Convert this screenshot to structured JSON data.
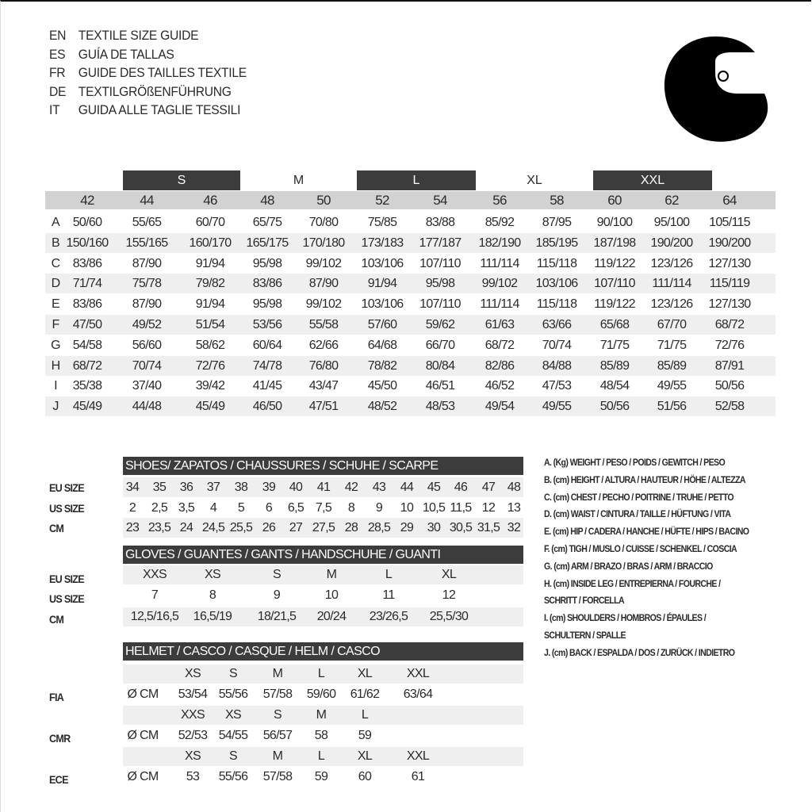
{
  "title_lines": [
    {
      "code": "EN",
      "text": "TEXTILE SIZE GUIDE"
    },
    {
      "code": "ES",
      "text": "GUÍA DE TALLAS"
    },
    {
      "code": "FR",
      "text": "GUIDE DES TAILLES TEXTILE"
    },
    {
      "code": "DE",
      "text": "TEXTILGRÖßENFÜHRUNG"
    },
    {
      "code": "IT",
      "text": "GUIDA ALLE TAGLIE TESSILI"
    }
  ],
  "helmet_icon": "helmet-icon",
  "textile": {
    "size_bands": [
      {
        "label": "S",
        "dark": true
      },
      {
        "label": "M",
        "dark": false
      },
      {
        "label": "L",
        "dark": true
      },
      {
        "label": "XL",
        "dark": false
      },
      {
        "label": "XXL",
        "dark": true
      }
    ],
    "eu_sizes": [
      "42",
      "44",
      "46",
      "48",
      "50",
      "52",
      "54",
      "56",
      "58",
      "60",
      "62",
      "64"
    ],
    "rows": [
      {
        "label": "A",
        "values": [
          "50/60",
          "55/65",
          "60/70",
          "65/75",
          "70/80",
          "75/85",
          "83/88",
          "85/92",
          "87/95",
          "90/100",
          "95/100",
          "105/115"
        ]
      },
      {
        "label": "B",
        "values": [
          "150/160",
          "155/165",
          "160/170",
          "165/175",
          "170/180",
          "173/183",
          "177/187",
          "182/190",
          "185/195",
          "187/198",
          "190/200",
          "190/200"
        ]
      },
      {
        "label": "C",
        "values": [
          "83/86",
          "87/90",
          "91/94",
          "95/98",
          "99/102",
          "103/106",
          "107/110",
          "111/114",
          "115/118",
          "119/122",
          "123/126",
          "127/130"
        ]
      },
      {
        "label": "D",
        "values": [
          "71/74",
          "75/78",
          "79/82",
          "83/86",
          "87/90",
          "91/94",
          "95/98",
          "99/102",
          "103/106",
          "107/110",
          "111/114",
          "115/119"
        ]
      },
      {
        "label": "E",
        "values": [
          "83/86",
          "87/90",
          "91/94",
          "95/98",
          "99/102",
          "103/106",
          "107/110",
          "111/114",
          "115/118",
          "119/122",
          "123/126",
          "127/130"
        ]
      },
      {
        "label": "F",
        "values": [
          "47/50",
          "49/52",
          "51/54",
          "53/56",
          "55/58",
          "57/60",
          "59/62",
          "61/63",
          "63/66",
          "65/68",
          "67/70",
          "68/72"
        ]
      },
      {
        "label": "G",
        "values": [
          "54/58",
          "56/60",
          "58/62",
          "60/64",
          "62/66",
          "64/68",
          "66/70",
          "68/72",
          "70/74",
          "71/75",
          "71/75",
          "72/76"
        ]
      },
      {
        "label": "H",
        "values": [
          "68/72",
          "70/74",
          "72/76",
          "74/78",
          "76/80",
          "78/82",
          "80/84",
          "82/86",
          "84/88",
          "85/89",
          "85/89",
          "87/91"
        ]
      },
      {
        "label": "I",
        "values": [
          "35/38",
          "37/40",
          "39/42",
          "41/45",
          "43/47",
          "45/50",
          "46/51",
          "46/52",
          "47/53",
          "48/54",
          "49/55",
          "50/56"
        ]
      },
      {
        "label": "J",
        "values": [
          "45/49",
          "44/48",
          "45/49",
          "46/50",
          "47/51",
          "48/52",
          "48/53",
          "49/54",
          "49/55",
          "50/56",
          "51/56",
          "52/58"
        ]
      }
    ]
  },
  "shoes": {
    "title": "SHOES/ ZAPATOS / CHAUSSURES / SCHUHE / SCARPE",
    "rows": [
      {
        "label": "EU SIZE",
        "values": [
          "34",
          "35",
          "36",
          "37",
          "38",
          "39",
          "40",
          "41",
          "42",
          "43",
          "44",
          "45",
          "46",
          "47",
          "48"
        ]
      },
      {
        "label": "US SIZE",
        "values": [
          "2",
          "2,5",
          "3,5",
          "4",
          "5",
          "6",
          "6,5",
          "7,5",
          "8",
          "9",
          "10",
          "10,5",
          "11,5",
          "12",
          "13"
        ]
      },
      {
        "label": "CM",
        "values": [
          "23",
          "23,5",
          "24",
          "24,5",
          "25,5",
          "26",
          "27",
          "27,5",
          "28",
          "28,5",
          "29",
          "30",
          "30,5",
          "31,5",
          "32"
        ]
      }
    ]
  },
  "gloves": {
    "title": "GLOVES / GUANTES / GANTS / HANDSCHUHE / GUANTI",
    "rows": [
      {
        "label": "EU SIZE",
        "values": [
          "XXS",
          "XS",
          "S",
          "M",
          "L",
          "XL"
        ]
      },
      {
        "label": "US SIZE",
        "values": [
          "7",
          "8",
          "9",
          "10",
          "11",
          "12"
        ]
      },
      {
        "label": "CM",
        "values": [
          "12,5/16,5",
          "16,5/19",
          "18/21,5",
          "20/24",
          "23/26,5",
          "25,5/30"
        ]
      }
    ]
  },
  "helmet": {
    "title": "HELMET / CASCO / CASQUE / HELM / CASCO",
    "standards": [
      {
        "label": "FIA",
        "unit": "Ø CM",
        "sizes": [
          "XS",
          "S",
          "M",
          "L",
          "XL",
          "XXL"
        ],
        "values": [
          "53/54",
          "55/56",
          "57/58",
          "59/60",
          "61/62",
          "63/64"
        ]
      },
      {
        "label": "CMR",
        "unit": "Ø CM",
        "sizes": [
          "XXS",
          "XS",
          "S",
          "M",
          "L"
        ],
        "values": [
          "52/53",
          "54/55",
          "56/57",
          "58",
          "59"
        ]
      },
      {
        "label": "ECE",
        "unit": "Ø CM",
        "sizes": [
          "XS",
          "S",
          "M",
          "L",
          "XL",
          "XXL"
        ],
        "values": [
          "53",
          "55/56",
          "57/58",
          "59",
          "60",
          "61"
        ]
      }
    ]
  },
  "legend": [
    "A. (Kg) WEIGHT / PESO / POIDS / GEWITCH / PESO",
    "B. (cm) HEIGHT / ALTURA / HAUTEUR / HÖHE / ALTEZZA",
    "C. (cm) CHEST / PECHO / POITRINE / TRUHE / PETTO",
    "D. (cm) WAIST / CINTURA / TAILLE / HÜFTUNG / VITA",
    "E. (cm) HIP / CADERA / HANCHE / HÜFTE / HIPS /  BACINO",
    "F.  (cm) TIGH / MUSLO / CUISSE / SCHENKEL / COSCIA",
    "G. (cm) ARM  / BRAZO / BRAS / ARM / BRACCIO",
    "H. (cm) INSIDE LEG / ENTREPIERNA / FOURCHE /",
    "SCHRITT / FORCELLA",
    "I.  (cm) SHOULDERS / HOMBROS / ÉPAULES /",
    "SCHULTERN / SPALLE",
    "J. (cm) BACK / ESPALDA / DOS / ZURÜCK / INDIETRO"
  ],
  "colors": {
    "dark_band": "#3c3c3c",
    "header_gray": "#d2d2d2",
    "stripe": "#efefef"
  }
}
